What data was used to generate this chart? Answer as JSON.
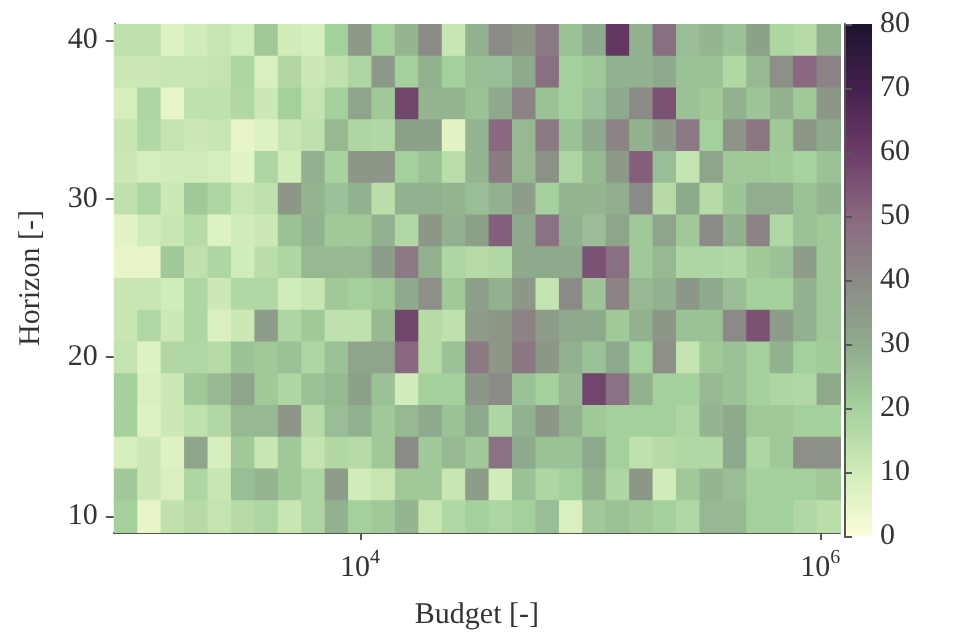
{
  "chart_data": {
    "type": "heatmap",
    "xlabel": "Budget [-]",
    "ylabel": "Horizon [-]",
    "log": "x",
    "xlim": [
      850,
      1220000
    ],
    "xticks": [
      {
        "value": 10000,
        "label": "10$^{4}$"
      },
      {
        "value": 1000000,
        "label": "10$^{6}$"
      }
    ],
    "ylim": [
      9,
      41
    ],
    "yticks": [
      10,
      20,
      30,
      40
    ],
    "clim": [
      0,
      80
    ],
    "cticks": [
      0,
      10,
      20,
      30,
      40,
      50,
      60,
      70,
      80
    ],
    "cells": [
      [
        14,
        14,
        7,
        10,
        12,
        10,
        22,
        10,
        9,
        20,
        35,
        20,
        27,
        40,
        12,
        28,
        40,
        36,
        45,
        24,
        30,
        62,
        28,
        48,
        25,
        27,
        24,
        33,
        18,
        16,
        28
      ],
      [
        11,
        11,
        12,
        12,
        13,
        18,
        8,
        17,
        11,
        14,
        18,
        35,
        20,
        28,
        20,
        25,
        25,
        30,
        48,
        20,
        22,
        28,
        28,
        30,
        24,
        24,
        17,
        26,
        38,
        50,
        42
      ],
      [
        9,
        18,
        5,
        14,
        14,
        17,
        11,
        20,
        13,
        20,
        32,
        22,
        58,
        27,
        27,
        24,
        30,
        42,
        24,
        20,
        24,
        30,
        40,
        55,
        24,
        22,
        28,
        23,
        28,
        22,
        36
      ],
      [
        12,
        17,
        13,
        11,
        12,
        5,
        7,
        12,
        14,
        26,
        18,
        17,
        33,
        33,
        6,
        27,
        50,
        26,
        45,
        24,
        30,
        42,
        28,
        35,
        45,
        20,
        37,
        46,
        22,
        36,
        30
      ],
      [
        11,
        9,
        10,
        10,
        9,
        6,
        18,
        10,
        28,
        19,
        36,
        36,
        20,
        24,
        15,
        27,
        44,
        26,
        38,
        18,
        26,
        35,
        52,
        25,
        13,
        32,
        22,
        22,
        21,
        19,
        24
      ],
      [
        14,
        18,
        11,
        22,
        18,
        12,
        14,
        36,
        27,
        24,
        28,
        15,
        28,
        28,
        27,
        25,
        28,
        34,
        20,
        27,
        27,
        29,
        40,
        16,
        30,
        16,
        23,
        29,
        29,
        24,
        27
      ],
      [
        6,
        10,
        12,
        16,
        7,
        10,
        11,
        24,
        28,
        22,
        22,
        28,
        17,
        36,
        28,
        33,
        52,
        30,
        47,
        28,
        25,
        32,
        22,
        32,
        22,
        40,
        28,
        42,
        17,
        24,
        22
      ],
      [
        5,
        5,
        22,
        14,
        18,
        10,
        15,
        18,
        26,
        26,
        26,
        34,
        45,
        28,
        18,
        16,
        17,
        30,
        30,
        30,
        55,
        48,
        22,
        26,
        18,
        18,
        17,
        22,
        24,
        34,
        22
      ],
      [
        12,
        12,
        10,
        18,
        11,
        17,
        17,
        10,
        12,
        22,
        20,
        22,
        30,
        38,
        22,
        33,
        28,
        36,
        13,
        40,
        23,
        42,
        26,
        28,
        36,
        30,
        25,
        20,
        20,
        28,
        22
      ],
      [
        12,
        17,
        11,
        18,
        8,
        11,
        34,
        18,
        22,
        14,
        14,
        26,
        58,
        16,
        14,
        34,
        36,
        42,
        34,
        30,
        30,
        22,
        28,
        36,
        24,
        24,
        40,
        55,
        34,
        28,
        22
      ],
      [
        13,
        7,
        17,
        17,
        16,
        24,
        22,
        24,
        18,
        24,
        32,
        32,
        50,
        16,
        24,
        45,
        36,
        46,
        36,
        28,
        24,
        30,
        20,
        38,
        13,
        22,
        24,
        20,
        28,
        20,
        21
      ],
      [
        20,
        8,
        11,
        22,
        26,
        32,
        22,
        18,
        24,
        26,
        33,
        24,
        10,
        20,
        20,
        36,
        40,
        24,
        20,
        26,
        58,
        47,
        28,
        20,
        20,
        26,
        24,
        20,
        18,
        17,
        30
      ],
      [
        20,
        7,
        11,
        14,
        17,
        26,
        26,
        36,
        16,
        25,
        28,
        22,
        26,
        30,
        24,
        30,
        18,
        28,
        36,
        28,
        22,
        20,
        20,
        20,
        18,
        27,
        30,
        22,
        22,
        20,
        20
      ],
      [
        9,
        11,
        7,
        32,
        9,
        22,
        12,
        22,
        13,
        17,
        16,
        22,
        40,
        22,
        26,
        22,
        47,
        30,
        24,
        24,
        30,
        20,
        14,
        16,
        17,
        17,
        30,
        18,
        22,
        38,
        38
      ],
      [
        22,
        11,
        8,
        18,
        12,
        25,
        27,
        22,
        18,
        34,
        10,
        12,
        22,
        22,
        12,
        34,
        10,
        24,
        18,
        20,
        28,
        18,
        36,
        10,
        22,
        27,
        25,
        20,
        20,
        20,
        22
      ],
      [
        20,
        5,
        14,
        16,
        13,
        16,
        18,
        12,
        18,
        28,
        20,
        22,
        27,
        12,
        17,
        20,
        18,
        20,
        25,
        8,
        22,
        24,
        22,
        20,
        17,
        26,
        26,
        20,
        20,
        17,
        15
      ]
    ]
  }
}
